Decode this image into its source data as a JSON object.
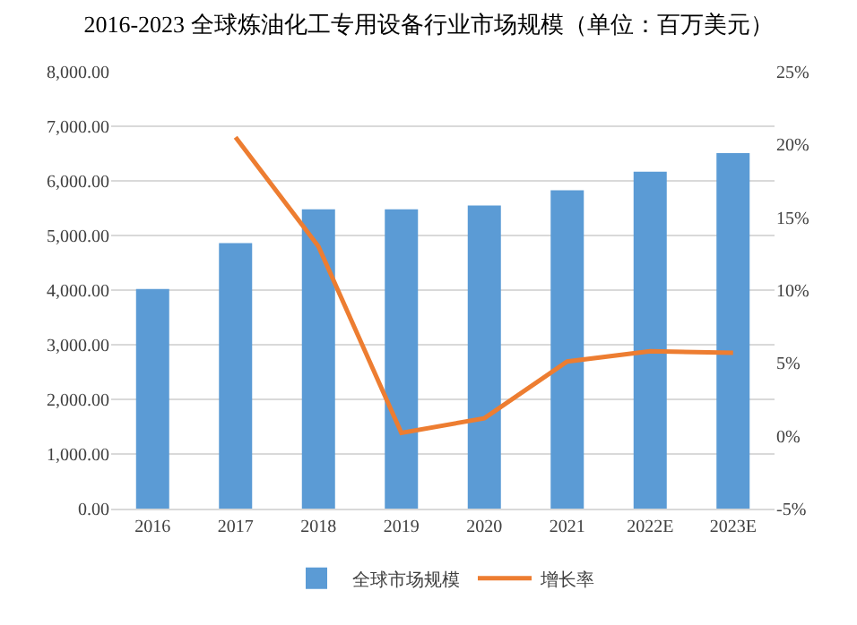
{
  "chart_data": {
    "type": "bar",
    "title": "2016-2023 全球炼油化工专用设备行业市场规模（单位：百万美元）",
    "categories": [
      "2016",
      "2017",
      "2018",
      "2019",
      "2020",
      "2021",
      "2022E",
      "2023E"
    ],
    "series": [
      {
        "name": "全球市场规模",
        "color": "#5b9bd5",
        "values": [
          4020,
          4860,
          5480,
          5480,
          5550,
          5830,
          6170,
          6510
        ]
      },
      {
        "name": "增长率",
        "type": "line",
        "axis": "y2",
        "color": "#ed7d31",
        "marker": "none",
        "line_style": "solid",
        "values": [
          null,
          20.5,
          13.0,
          0.2,
          1.2,
          5.1,
          5.8,
          5.7
        ]
      }
    ],
    "ylim": [
      0,
      8000
    ],
    "yticks": [
      {
        "value": 0,
        "label": "0.00"
      },
      {
        "value": 1000,
        "label": "1,000.00"
      },
      {
        "value": 2000,
        "label": "2,000.00"
      },
      {
        "value": 3000,
        "label": "3,000.00"
      },
      {
        "value": 4000,
        "label": "4,000.00"
      },
      {
        "value": 5000,
        "label": "5,000.00"
      },
      {
        "value": 6000,
        "label": "6,000.00"
      },
      {
        "value": 7000,
        "label": "7,000.00"
      },
      {
        "value": 8000,
        "label": "8,000.00"
      }
    ],
    "y2lim": [
      -5,
      25
    ],
    "y2ticks": [
      {
        "value": -5,
        "label": "-5%"
      },
      {
        "value": 0,
        "label": "0%"
      },
      {
        "value": 5,
        "label": "5%"
      },
      {
        "value": 10,
        "label": "10%"
      },
      {
        "value": 15,
        "label": "15%"
      },
      {
        "value": 20,
        "label": "20%"
      },
      {
        "value": 25,
        "label": "25%"
      }
    ],
    "grid": "y",
    "legend": "bottom"
  }
}
